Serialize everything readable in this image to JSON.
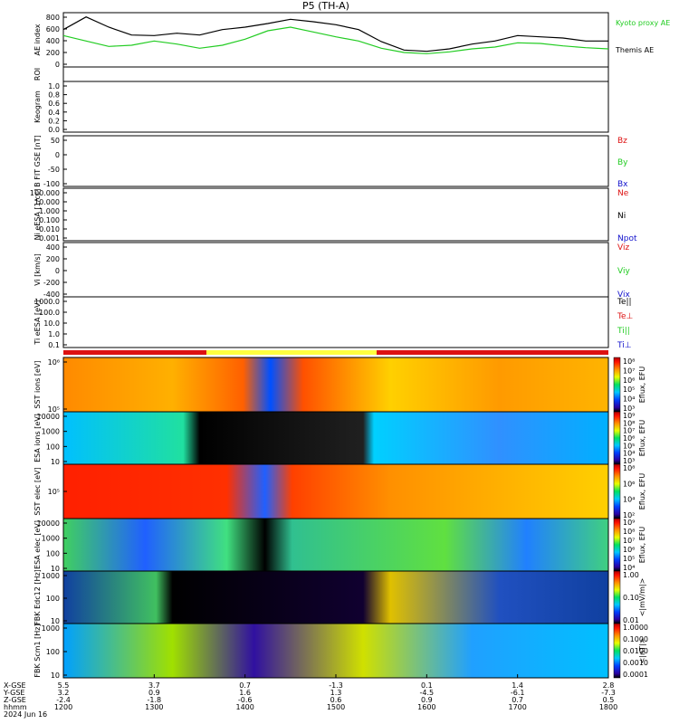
{
  "title": "P5 (TH-A)",
  "colors": {
    "kyoto": "#22cc22",
    "themis": "#000000",
    "red": "#dd1111",
    "green": "#22cc22",
    "blue": "#1111cc",
    "black": "#000000"
  },
  "chart_data": [
    {
      "type": "line",
      "panel": "ae",
      "ylabel": "AE index",
      "yticks": [
        "800",
        "600",
        "400",
        "200",
        "0"
      ],
      "ylim": [
        -100,
        800
      ],
      "series": [
        {
          "name": "Kyoto proxy AE",
          "color": "#22cc22",
          "x": [
            12.0,
            12.25,
            12.5,
            12.75,
            13.0,
            13.25,
            13.5,
            13.75,
            14.0,
            14.25,
            14.5,
            14.75,
            15.0,
            15.25,
            15.5,
            15.75,
            16.0,
            16.25,
            16.5,
            16.75,
            17.0,
            17.25,
            17.5,
            17.75,
            18.0
          ],
          "values": [
            420,
            330,
            240,
            260,
            330,
            280,
            210,
            260,
            360,
            500,
            560,
            480,
            400,
            330,
            210,
            140,
            120,
            150,
            200,
            230,
            300,
            290,
            250,
            220,
            200
          ]
        },
        {
          "name": "Themis AE",
          "color": "#000000",
          "x": [
            12.0,
            12.25,
            12.5,
            12.75,
            13.0,
            13.25,
            13.5,
            13.75,
            14.0,
            14.25,
            14.5,
            14.75,
            15.0,
            15.25,
            15.5,
            15.75,
            16.0,
            16.25,
            16.5,
            16.75,
            17.0,
            17.25,
            17.5,
            17.75,
            18.0
          ],
          "values": [
            520,
            730,
            560,
            430,
            420,
            460,
            430,
            520,
            560,
            620,
            690,
            650,
            600,
            520,
            320,
            180,
            160,
            200,
            280,
            330,
            420,
            400,
            380,
            330,
            330
          ]
        }
      ]
    },
    {
      "type": "line",
      "panel": "roi",
      "ylabel": "ROI"
    },
    {
      "type": "line",
      "panel": "keogram",
      "ylabel": "Keogram",
      "yticks": [
        "1.0",
        "0.8",
        "0.6",
        "0.4",
        "0.2",
        "0.0"
      ],
      "ylim": [
        0,
        1
      ]
    },
    {
      "type": "line",
      "panel": "bfield",
      "ylabel": "B FIT GSE [nT]",
      "yticks": [
        "50",
        "0",
        "-50",
        "-100"
      ],
      "series": [
        {
          "name": "Bz",
          "color": "#dd1111"
        },
        {
          "name": "By",
          "color": "#22cc22"
        },
        {
          "name": "Bx",
          "color": "#1111cc"
        }
      ]
    },
    {
      "type": "line",
      "panel": "density",
      "ylabel": "Ni eESA [1/cc]",
      "yticks": [
        "100.000",
        "10.000",
        "1.000",
        "0.100",
        "0.010",
        "0.001"
      ],
      "series": [
        {
          "name": "Ne",
          "color": "#dd1111"
        },
        {
          "name": "Ni",
          "color": "#000000"
        },
        {
          "name": "Npot",
          "color": "#1111cc"
        }
      ]
    },
    {
      "type": "line",
      "panel": "velocity",
      "ylabel": "Vi [km/s]",
      "yticks": [
        "400",
        "200",
        "0",
        "-200",
        "-400"
      ],
      "series": [
        {
          "name": "Viz",
          "color": "#dd1111"
        },
        {
          "name": "Viy",
          "color": "#22cc22"
        },
        {
          "name": "Vix",
          "color": "#1111cc"
        }
      ]
    },
    {
      "type": "line",
      "panel": "temperature",
      "ylabel": "Ti eESA [eV]",
      "yticks": [
        "1000.0",
        "100.0",
        "10.0",
        "1.0",
        "0.1"
      ],
      "series": [
        {
          "name": "Te||",
          "color": "#000000"
        },
        {
          "name": "Te⊥",
          "color": "#dd1111"
        },
        {
          "name": "Ti||",
          "color": "#22cc22"
        },
        {
          "name": "Ti⊥",
          "color": "#1111cc"
        }
      ]
    },
    {
      "type": "heatmap",
      "panel": "sst_ion",
      "ylabel": "SST ions [eV]",
      "yticks": [
        "10⁶",
        "10⁵"
      ],
      "cbar_label": "Eflux, EFU",
      "cbar_ticks": [
        "10⁸",
        "10⁷",
        "10⁶",
        "10⁵",
        "10⁴",
        "10³"
      ]
    },
    {
      "type": "heatmap",
      "panel": "esa_ion",
      "ylabel": "ESA ions [eV]",
      "yticks": [
        "10000",
        "1000",
        "100",
        "10"
      ],
      "cbar_label": "Eflux, EFU",
      "cbar_ticks": [
        "10⁹",
        "10⁸",
        "10⁷",
        "10⁶",
        "10⁵",
        "10⁴",
        "10³"
      ]
    },
    {
      "type": "heatmap",
      "panel": "sst_elec",
      "ylabel": "SST elec [eV]",
      "yticks": [
        "10⁵"
      ],
      "cbar_label": "Eflux, EFU",
      "cbar_ticks": [
        "10⁸",
        "10⁶",
        "10⁴",
        "10²"
      ]
    },
    {
      "type": "heatmap",
      "panel": "esa_elec",
      "ylabel": "ESA elec [eV]",
      "yticks": [
        "10000",
        "1000",
        "100",
        "10"
      ],
      "cbar_label": "Eflux, EFU",
      "cbar_ticks": [
        "10⁹",
        "10⁸",
        "10⁷",
        "10⁶",
        "10⁵",
        "10⁴"
      ]
    },
    {
      "type": "heatmap",
      "panel": "fbk_e",
      "ylabel": "FBK Edc12 [Hz]",
      "yticks": [
        "1000",
        "100",
        "10"
      ],
      "cbar_label": "<|mV/m|>",
      "cbar_ticks": [
        "1.00",
        "0.10",
        "0.01"
      ]
    },
    {
      "type": "heatmap",
      "panel": "fbk_b",
      "ylabel": "FBK Scm1 [Hz]",
      "yticks": [
        "1000",
        "100",
        "10"
      ],
      "cbar_label": "<|nT|>",
      "cbar_ticks": [
        "1.0000",
        "0.1000",
        "0.0100",
        "0.0010",
        "0.0001"
      ]
    }
  ],
  "footer": {
    "row_labels": [
      "X-GSE",
      "Y-GSE",
      "Z-GSE",
      "hhmm",
      "2024 Jun 16"
    ],
    "columns": [
      [
        "5.5",
        "3.2",
        "-2.4",
        "1200"
      ],
      [
        "3.7",
        "0.9",
        "-1.8",
        "1300"
      ],
      [
        "0.7",
        "1.6",
        "-0.6",
        "1400"
      ],
      [
        "-1.3",
        "1.3",
        "0.6",
        "1500"
      ],
      [
        "0.1",
        "-4.5",
        "0.9",
        "1600"
      ],
      [
        "1.4",
        "-6.1",
        "0.7",
        "1700"
      ],
      [
        "2.8",
        "-7.3",
        "0.5",
        "1800"
      ]
    ]
  }
}
